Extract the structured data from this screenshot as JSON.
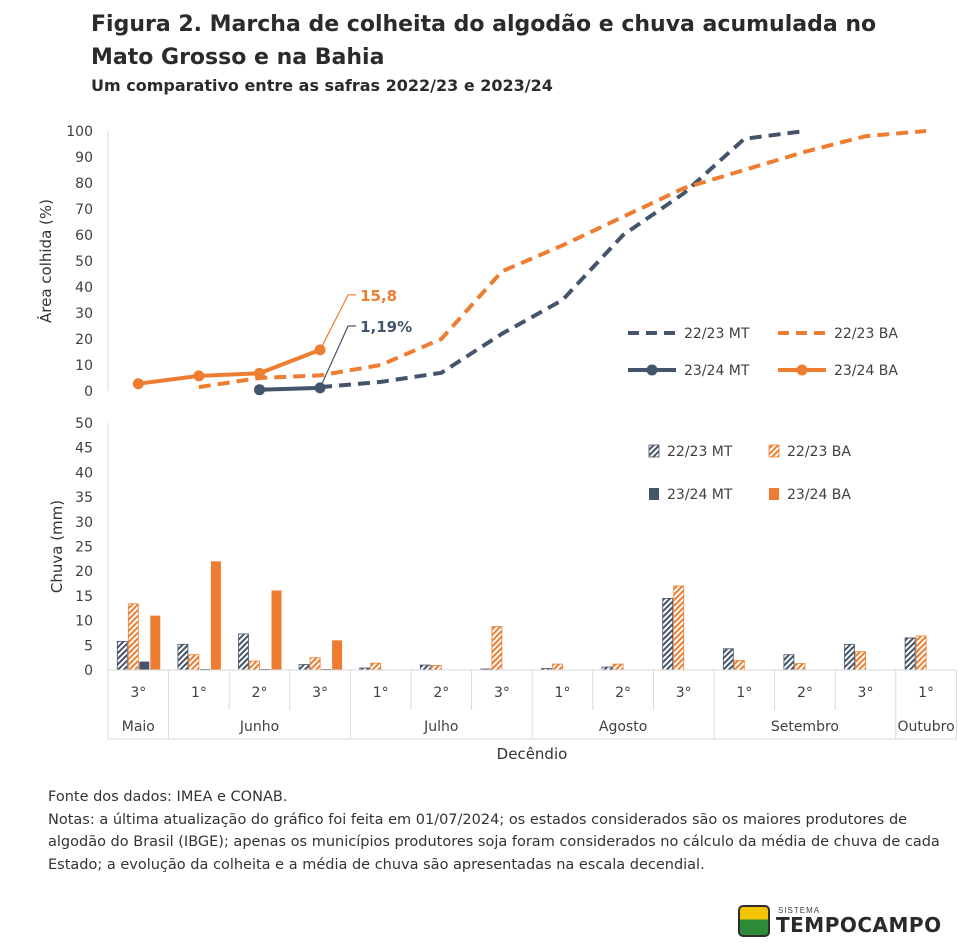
{
  "header": {
    "title": "Figura 2. Marcha de colheita do algodão e chuva acumulada no Mato Grosso e na Bahia",
    "subtitle": "Um comparativo entre as safras 2022/23 e 2023/24"
  },
  "colors": {
    "mt": "#44546a",
    "ba": "#ed7d31",
    "axis": "#d9d9d9",
    "text": "#404040"
  },
  "chart_data": [
    {
      "type": "line",
      "ylabel": "Área colhida (%)",
      "ylim": [
        0,
        100
      ],
      "yticks": [
        0,
        10,
        20,
        30,
        40,
        50,
        60,
        70,
        80,
        90,
        100
      ],
      "categories": [
        "3°",
        "1°",
        "2°",
        "3°",
        "1°",
        "2°",
        "3°",
        "1°",
        "2°",
        "3°",
        "1°",
        "2°",
        "3°",
        "1°"
      ],
      "series": [
        {
          "name": "22/23 MT",
          "color": "#44546a",
          "style": "dashed",
          "values": [
            null,
            null,
            null,
            1.5,
            3.5,
            7,
            22,
            35,
            60,
            76,
            97,
            100,
            null,
            null
          ]
        },
        {
          "name": "22/23 BA",
          "color": "#ed7d31",
          "style": "dashed",
          "values": [
            null,
            1.5,
            5,
            6,
            10,
            20,
            46,
            56,
            67,
            78,
            85,
            92,
            98,
            100
          ]
        },
        {
          "name": "23/24 MT",
          "color": "#44546a",
          "style": "solid-marker",
          "values": [
            null,
            null,
            0.5,
            1.19,
            null,
            null,
            null,
            null,
            null,
            null,
            null,
            null,
            null,
            null
          ]
        },
        {
          "name": "23/24 BA",
          "color": "#ed7d31",
          "style": "solid-marker",
          "values": [
            2.8,
            5.8,
            6.8,
            15.8,
            null,
            null,
            null,
            null,
            null,
            null,
            null,
            null,
            null,
            null
          ]
        }
      ],
      "annotations": [
        {
          "text": "15,8",
          "series": "23/24 BA"
        },
        {
          "text": "1,19%",
          "series": "23/24 MT"
        }
      ],
      "legend": "right"
    },
    {
      "type": "bar",
      "ylabel": "Chuva (mm)",
      "xlabel": "Decêndio",
      "ylim": [
        0,
        50
      ],
      "yticks": [
        0,
        5,
        10,
        15,
        20,
        25,
        30,
        35,
        40,
        45,
        50
      ],
      "categories": [
        "3°",
        "1°",
        "2°",
        "3°",
        "1°",
        "2°",
        "3°",
        "1°",
        "2°",
        "3°",
        "1°",
        "2°",
        "3°",
        "1°"
      ],
      "months": [
        {
          "label": "Maio",
          "span": 1
        },
        {
          "label": "Junho",
          "span": 3
        },
        {
          "label": "Julho",
          "span": 3
        },
        {
          "label": "Agosto",
          "span": 3
        },
        {
          "label": "Setembro",
          "span": 3
        },
        {
          "label": "Outubro",
          "span": 1
        }
      ],
      "series": [
        {
          "name": "22/23 MT",
          "color": "#44546a",
          "pattern": "hatched",
          "values": [
            5.8,
            5.2,
            7.3,
            1.1,
            0.4,
            1.0,
            0.2,
            0.3,
            0.6,
            14.5,
            4.3,
            3.1,
            5.2,
            6.5
          ]
        },
        {
          "name": "22/23 BA",
          "color": "#ed7d31",
          "pattern": "hatched",
          "values": [
            13.4,
            3.1,
            1.8,
            2.5,
            1.4,
            0.9,
            8.8,
            1.2,
            1.2,
            17.0,
            1.9,
            1.3,
            3.7,
            6.9
          ]
        },
        {
          "name": "23/24 MT",
          "color": "#44546a",
          "pattern": "solid",
          "values": [
            1.7,
            0.2,
            0.2,
            0.2,
            null,
            null,
            null,
            null,
            null,
            null,
            null,
            null,
            null,
            null
          ]
        },
        {
          "name": "23/24 BA",
          "color": "#ed7d31",
          "pattern": "solid",
          "values": [
            11.0,
            22.0,
            16.1,
            6.0,
            null,
            null,
            null,
            null,
            null,
            null,
            null,
            null,
            null,
            null
          ]
        }
      ],
      "legend": "top-right"
    }
  ],
  "notes": {
    "source": "Fonte dos dados: IMEA e CONAB.",
    "text": "Notas: a última atualização do gráfico foi feita em 01/07/2024; os estados considerados são os maiores produtores de algodão do Brasil (IBGE); apenas os municípios produtores soja foram considerados no cálculo da média de chuva de cada Estado; a evolução da colheita e a média de chuva são apresentadas na escala decendial."
  },
  "logo": {
    "small": "SISTEMA",
    "name": "TEMPOCAMPO"
  }
}
